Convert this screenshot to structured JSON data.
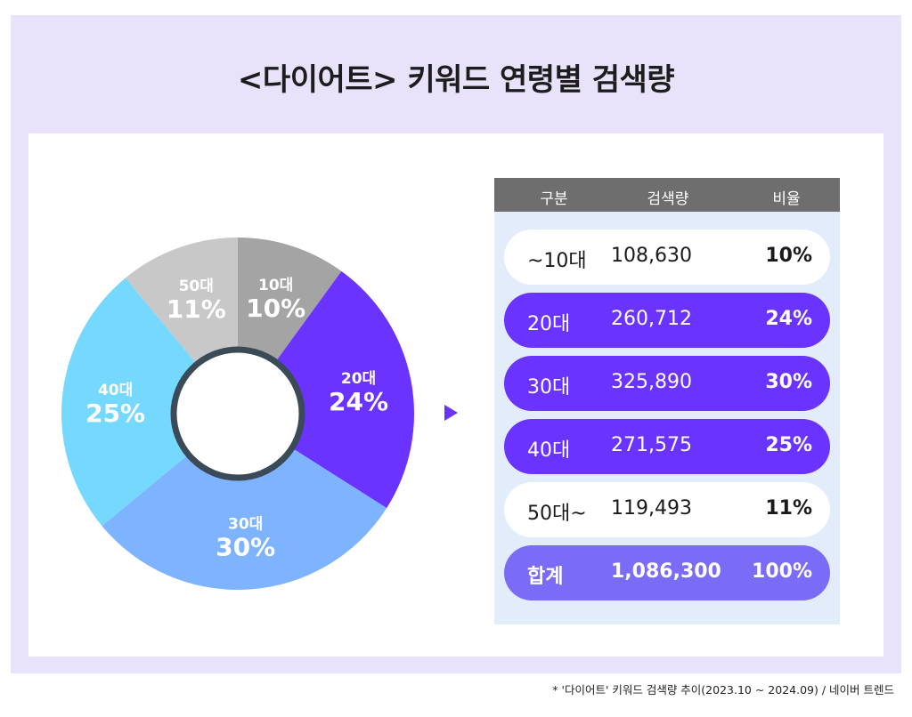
{
  "title": "<다이어트> 키워드 연령별 검색량",
  "footnote": "* '다이어트' 키워드 검색량 추이(2023.10 ~ 2024.09) / 네이버 트렌드",
  "table": {
    "headers": [
      "구분",
      "검색량",
      "비율"
    ],
    "rows": [
      {
        "category": "~10대",
        "volume": "108,630",
        "ratio": "10%"
      },
      {
        "category": "20대",
        "volume": "260,712",
        "ratio": "24%"
      },
      {
        "category": "30대",
        "volume": "325,890",
        "ratio": "30%"
      },
      {
        "category": "40대",
        "volume": "271,575",
        "ratio": "25%"
      },
      {
        "category": "50대~",
        "volume": "119,493",
        "ratio": "11%"
      }
    ],
    "total": {
      "category": "합계",
      "volume": "1,086,300",
      "ratio": "100%"
    }
  },
  "chart_data": {
    "type": "pie",
    "categories": [
      "10대",
      "20대",
      "30대",
      "40대",
      "50대"
    ],
    "values": [
      10,
      24,
      30,
      25,
      11
    ],
    "value_labels": [
      "10%",
      "24%",
      "30%",
      "25%",
      "11%"
    ],
    "colors": [
      "#a4a4a4",
      "#6a33ff",
      "#7eb3ff",
      "#74d8ff",
      "#c8c8c8"
    ],
    "row_styles": [
      "light",
      "dark",
      "dark",
      "dark",
      "light"
    ],
    "center_ring_color": "#3b4a57",
    "accent": "#6a33ff"
  }
}
